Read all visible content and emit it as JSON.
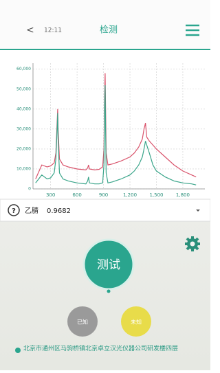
{
  "header": {
    "back": "<",
    "time": "12:11",
    "title": "检测"
  },
  "chart_data": {
    "type": "line",
    "x": [
      130,
      200,
      260,
      300,
      340,
      360,
      375,
      380,
      385,
      400,
      440,
      500,
      600,
      700,
      720,
      730,
      740,
      800,
      850,
      890,
      905,
      912,
      918,
      924,
      930,
      950,
      1000,
      1100,
      1200,
      1250,
      1300,
      1340,
      1360,
      1376,
      1390,
      1420,
      1460,
      1500,
      1600,
      1700,
      1800,
      1900,
      1950
    ],
    "series": [
      {
        "color": "#d9536b",
        "values": [
          5000,
          12000,
          11000,
          11500,
          13000,
          18000,
          35000,
          40000,
          30000,
          15000,
          12000,
          11000,
          10000,
          9500,
          10500,
          12000,
          10000,
          9500,
          9800,
          11000,
          20000,
          45000,
          58000,
          40000,
          18000,
          12000,
          12500,
          14000,
          16000,
          18000,
          21000,
          25000,
          30000,
          33000,
          26000,
          24000,
          22000,
          20000,
          16000,
          12000,
          9000,
          7000,
          6000
        ]
      },
      {
        "color": "#3aa58a",
        "values": [
          3000,
          7000,
          5000,
          5500,
          8000,
          15000,
          32000,
          38000,
          25000,
          8000,
          5000,
          4000,
          3000,
          2500,
          4000,
          6000,
          3000,
          2500,
          2500,
          3000,
          12000,
          40000,
          52000,
          30000,
          8000,
          3000,
          3500,
          5000,
          7000,
          9000,
          12000,
          16000,
          20000,
          24000,
          22000,
          18000,
          12000,
          9000,
          6000,
          4000,
          3000,
          2500,
          2000
        ]
      }
    ],
    "xlim": [
      100,
      2050
    ],
    "ylim": [
      0,
      63000
    ],
    "xticks": [
      300,
      600,
      900,
      {
        "value": 1200,
        "label": "1,200"
      },
      {
        "value": 1500,
        "label": "1,500"
      },
      {
        "value": 1800,
        "label": "1,800"
      }
    ],
    "yticks": [
      0,
      {
        "value": 10000,
        "label": "10,000"
      },
      {
        "value": 20000,
        "label": "20,000"
      },
      {
        "value": 30000,
        "label": "30,000"
      },
      {
        "value": 40000,
        "label": "40,000"
      },
      {
        "value": 50000,
        "label": "50,000"
      },
      {
        "value": 60000,
        "label": "60,000"
      }
    ],
    "grid": true
  },
  "result": {
    "help": "?",
    "compound": "乙腈",
    "score": "0.9682"
  },
  "buttons": {
    "test": "测试",
    "known": "已知",
    "unknown": "未知"
  },
  "address": "北京市通州区马驹桥镇北京卓立汉光仪器公司研发楼四层"
}
